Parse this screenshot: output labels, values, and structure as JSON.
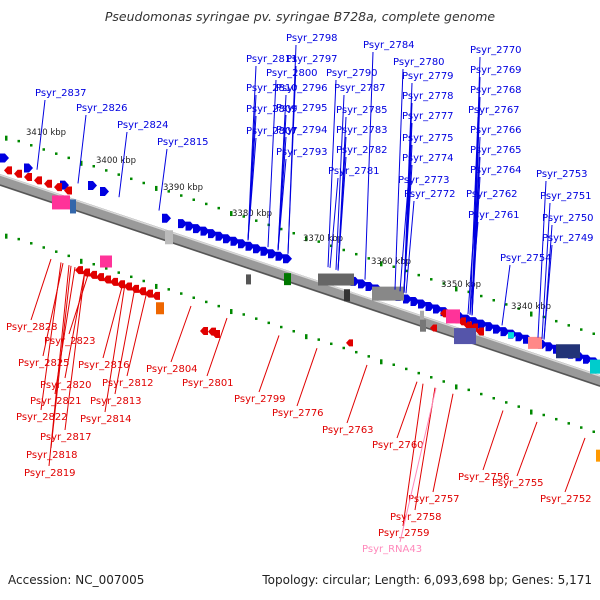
{
  "title": "Pseudomonas syringae pv. syringae B728a, complete genome",
  "footer": {
    "accession": "Accession: NC_007005",
    "summary": "Topology: circular; Length: 6,093,698 bp; Genes: 5,171"
  },
  "colors": {
    "forward": "#0000e0",
    "reverse": "#e00000",
    "rna": "#ff88bb",
    "backbone": "#808080",
    "tick": "#008800"
  },
  "scale_labels": [
    "3410 kbp",
    "3400 kbp",
    "3390 kbp",
    "3380 kbp",
    "3370 kbp",
    "3360 kbp",
    "3350 kbp",
    "3340 kbp"
  ],
  "forward_labels": [
    "Psyr_2837",
    "Psyr_2826",
    "Psyr_2824",
    "Psyr_2815",
    "Psyr_2811",
    "Psyr_2810",
    "Psyr_2809",
    "Psyr_2807",
    "Psyr_2798",
    "Psyr_2797",
    "Psyr_2800",
    "Psyr_2796",
    "Psyr_2795",
    "Psyr_2794",
    "Psyr_2793",
    "Psyr_2790",
    "Psyr_2787",
    "Psyr_2785",
    "Psyr_2783",
    "Psyr_2782",
    "Psyr_2781",
    "Psyr_2784",
    "Psyr_2780",
    "Psyr_2779",
    "Psyr_2778",
    "Psyr_2777",
    "Psyr_2775",
    "Psyr_2774",
    "Psyr_2773",
    "Psyr_2772",
    "Psyr_2770",
    "Psyr_2769",
    "Psyr_2768",
    "Psyr_2767",
    "Psyr_2766",
    "Psyr_2765",
    "Psyr_2764",
    "Psyr_2762",
    "Psyr_2761",
    "Psyr_2753",
    "Psyr_2751",
    "Psyr_2750",
    "Psyr_2749",
    "Psyr_2754"
  ],
  "reverse_labels": [
    "Psyr_2828",
    "Psyr_2823",
    "Psyr_2825",
    "Psyr_2816",
    "Psyr_2820",
    "Psyr_2812",
    "Psyr_2821",
    "Psyr_2813",
    "Psyr_2822",
    "Psyr_2814",
    "Psyr_2817",
    "Psyr_2818",
    "Psyr_2819",
    "Psyr_2804",
    "Psyr_2801",
    "Psyr_2799",
    "Psyr_2776",
    "Psyr_2763",
    "Psyr_2760",
    "Psyr_2756",
    "Psyr_2755",
    "Psyr_2752",
    "Psyr_2757",
    "Psyr_2758",
    "Psyr_2759"
  ],
  "rna_labels": [
    "Psyr_RNA43"
  ]
}
